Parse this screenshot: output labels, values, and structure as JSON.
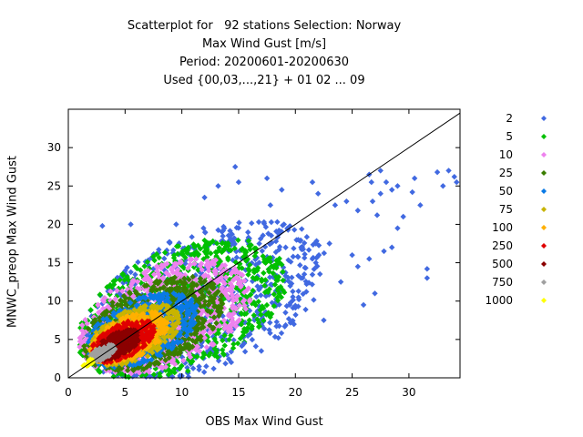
{
  "chart_data": {
    "type": "scatter",
    "title_lines": [
      "Scatterplot for   92 stations Selection: Norway",
      "Max Wind Gust [m/s]",
      "Period: 20200601-20200630",
      "Used {00,03,...,21} + 01 02 ... 09"
    ],
    "xlabel": "OBS Max Wind Gust",
    "ylabel": "MNWC_preop Max Wind Gust",
    "xlim": [
      0,
      34.5
    ],
    "ylim": [
      0,
      35
    ],
    "x_ticks": [
      0,
      5,
      10,
      15,
      20,
      25,
      30
    ],
    "y_ticks": [
      0,
      5,
      10,
      15,
      20,
      25,
      30
    ],
    "diagonal": "y = x",
    "legend_position": "right",
    "legend": [
      {
        "label": "2",
        "color": "#4169e1"
      },
      {
        "label": "5",
        "color": "#00c000"
      },
      {
        "label": "10",
        "color": "#ee82ee"
      },
      {
        "label": "25",
        "color": "#3a7d00"
      },
      {
        "label": "50",
        "color": "#0a7ae6"
      },
      {
        "label": "75",
        "color": "#c8b400"
      },
      {
        "label": "100",
        "color": "#ffb000"
      },
      {
        "label": "250",
        "color": "#e00000"
      },
      {
        "label": "500",
        "color": "#8b0000"
      },
      {
        "label": "750",
        "color": "#a0a0a0"
      },
      {
        "label": "1000",
        "color": "#ffff00"
      }
    ],
    "density_regions": [
      {
        "level": "2",
        "color": "#4169e1",
        "cx": 12.0,
        "cy": 10.0,
        "rx": 13.0,
        "ry": 8.0,
        "n": 650
      },
      {
        "level": "5",
        "color": "#00c000",
        "cx": 10.0,
        "cy": 9.0,
        "rx": 11.0,
        "ry": 7.0,
        "n": 750
      },
      {
        "level": "10",
        "color": "#ee82ee",
        "cx": 8.5,
        "cy": 8.0,
        "rx": 9.0,
        "ry": 5.8,
        "n": 700
      },
      {
        "level": "25",
        "color": "#3a7d00",
        "cx": 7.5,
        "cy": 7.0,
        "rx": 7.5,
        "ry": 4.6,
        "n": 650
      },
      {
        "level": "50",
        "color": "#0a7ae6",
        "cx": 6.5,
        "cy": 6.2,
        "rx": 6.0,
        "ry": 3.6,
        "n": 550
      },
      {
        "level": "75",
        "color": "#c8b400",
        "cx": 5.8,
        "cy": 5.6,
        "rx": 4.9,
        "ry": 2.9,
        "n": 450
      },
      {
        "level": "100",
        "color": "#ffb000",
        "cx": 5.3,
        "cy": 5.2,
        "rx": 4.2,
        "ry": 2.4,
        "n": 380
      },
      {
        "level": "250",
        "color": "#e00000",
        "cx": 4.8,
        "cy": 4.8,
        "rx": 3.5,
        "ry": 1.9,
        "n": 320
      },
      {
        "level": "500",
        "color": "#8b0000",
        "cx": 4.3,
        "cy": 4.3,
        "rx": 2.6,
        "ry": 1.3,
        "n": 240
      },
      {
        "level": "750",
        "color": "#a0a0a0",
        "cx": 3.0,
        "cy": 3.2,
        "rx": 1.4,
        "ry": 0.7,
        "n": 90
      },
      {
        "level": "1000",
        "color": "#ffff00",
        "cx": 1.8,
        "cy": 1.9,
        "rx": 0.6,
        "ry": 0.4,
        "n": 20
      }
    ],
    "outlier_points": [
      [
        30.3,
        24.2
      ],
      [
        32.5,
        26.8
      ],
      [
        33.5,
        27.0
      ],
      [
        34.0,
        26.2
      ],
      [
        31.6,
        14.2
      ],
      [
        31.6,
        13.0
      ],
      [
        26.5,
        26.5
      ],
      [
        26.7,
        25.5
      ],
      [
        27.2,
        21.2
      ],
      [
        26.8,
        23.0
      ],
      [
        27.5,
        24.0
      ],
      [
        25.5,
        21.8
      ],
      [
        28.0,
        25.5
      ],
      [
        28.5,
        24.5
      ],
      [
        29.5,
        21.0
      ],
      [
        29.0,
        19.5
      ],
      [
        30.5,
        26.0
      ],
      [
        31.0,
        22.5
      ],
      [
        14.7,
        27.5
      ],
      [
        15.0,
        25.5
      ],
      [
        17.5,
        26.0
      ],
      [
        13.2,
        25.0
      ],
      [
        12.0,
        23.5
      ],
      [
        9.5,
        20.0
      ],
      [
        5.5,
        20.0
      ],
      [
        3.0,
        19.8
      ],
      [
        21.5,
        25.5
      ],
      [
        22.0,
        24.0
      ],
      [
        23.5,
        22.5
      ],
      [
        24.5,
        23.0
      ],
      [
        20.5,
        13.0
      ],
      [
        22.5,
        7.5
      ],
      [
        24.0,
        12.5
      ],
      [
        25.5,
        14.5
      ],
      [
        26.5,
        15.5
      ],
      [
        27.0,
        11.0
      ],
      [
        27.8,
        16.5
      ],
      [
        28.5,
        17.0
      ],
      [
        26.0,
        9.5
      ],
      [
        25.0,
        16.0
      ],
      [
        23.0,
        17.5
      ],
      [
        21.8,
        15.0
      ],
      [
        18.5,
        5.2
      ],
      [
        17.0,
        3.5
      ],
      [
        15.5,
        4.5
      ],
      [
        19.5,
        9.5
      ],
      [
        20.5,
        17.0
      ],
      [
        19.0,
        20.0
      ],
      [
        33.0,
        25.0
      ],
      [
        34.2,
        25.5
      ],
      [
        29.0,
        25.0
      ],
      [
        27.5,
        27.0
      ],
      [
        17.8,
        22.5
      ],
      [
        18.8,
        24.5
      ]
    ]
  }
}
